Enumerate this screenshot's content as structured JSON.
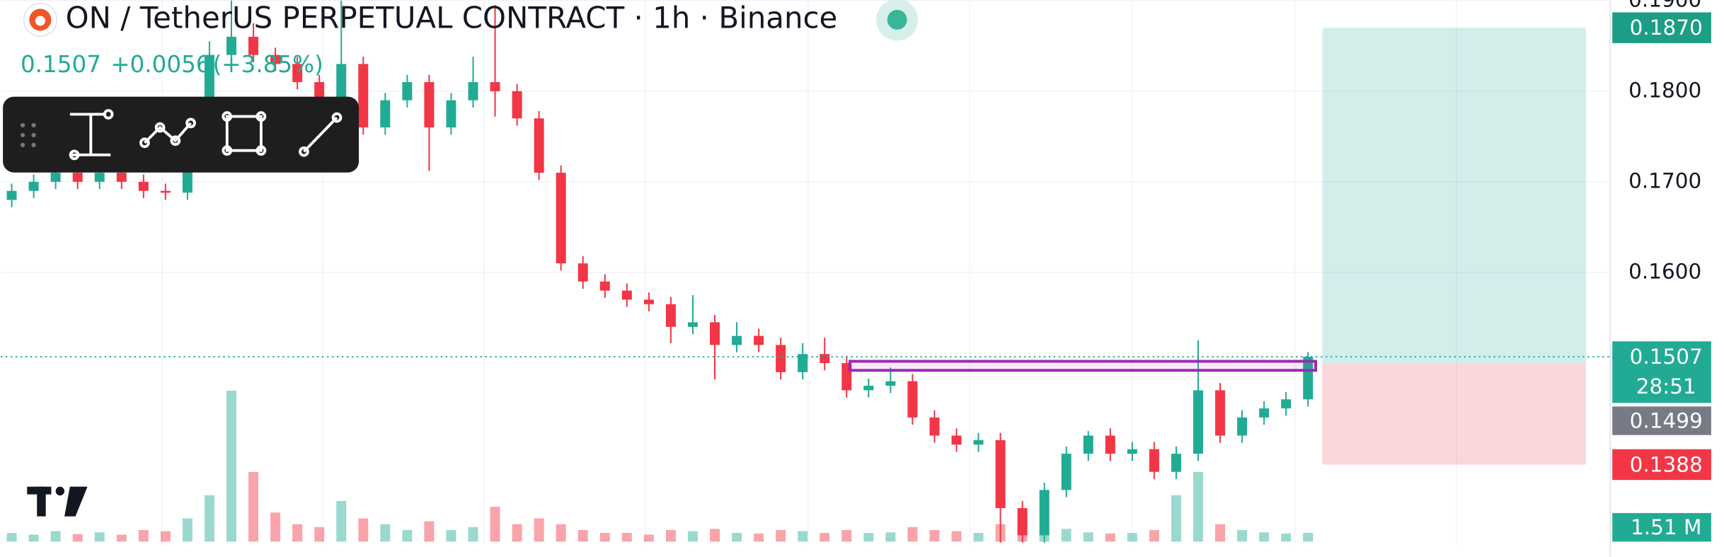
{
  "header": {
    "title": "ON / TetherUS PERPETUAL CONTRACT · 1h · Binance",
    "price": "0.1507",
    "change": "+0.0056",
    "change_pct": "(+3.85%)"
  },
  "chart_data": {
    "type": "candlestick",
    "candles": [
      [
        0.168,
        0.1698,
        0.1672,
        0.169
      ],
      [
        0.169,
        0.1708,
        0.1682,
        0.17
      ],
      [
        0.17,
        0.1718,
        0.1692,
        0.171
      ],
      [
        0.171,
        0.1718,
        0.1692,
        0.17
      ],
      [
        0.17,
        0.1718,
        0.1692,
        0.171
      ],
      [
        0.171,
        0.1718,
        0.1692,
        0.17
      ],
      [
        0.17,
        0.1708,
        0.1682,
        0.169
      ],
      [
        0.169,
        0.1698,
        0.168,
        0.1688
      ],
      [
        0.1688,
        0.1748,
        0.168,
        0.174
      ],
      [
        0.174,
        0.1855,
        0.1732,
        0.184
      ],
      [
        0.184,
        0.19,
        0.1832,
        0.186
      ],
      [
        0.186,
        0.1875,
        0.1832,
        0.184
      ],
      [
        0.184,
        0.1848,
        0.1822,
        0.183
      ],
      [
        0.183,
        0.1838,
        0.1802,
        0.181
      ],
      [
        0.181,
        0.1818,
        0.1782,
        0.179
      ],
      [
        0.179,
        0.19,
        0.1782,
        0.183
      ],
      [
        0.183,
        0.1838,
        0.1752,
        0.176
      ],
      [
        0.176,
        0.1798,
        0.1752,
        0.179
      ],
      [
        0.179,
        0.1818,
        0.1782,
        0.181
      ],
      [
        0.181,
        0.1818,
        0.1712,
        0.176
      ],
      [
        0.176,
        0.1798,
        0.1752,
        0.179
      ],
      [
        0.179,
        0.1838,
        0.1782,
        0.181
      ],
      [
        0.181,
        0.1895,
        0.1772,
        0.18
      ],
      [
        0.18,
        0.1808,
        0.1762,
        0.177
      ],
      [
        0.177,
        0.1778,
        0.1702,
        0.171
      ],
      [
        0.171,
        0.1718,
        0.1602,
        0.161
      ],
      [
        0.161,
        0.1618,
        0.1582,
        0.159
      ],
      [
        0.159,
        0.1598,
        0.1572,
        0.158
      ],
      [
        0.158,
        0.1588,
        0.1562,
        0.157
      ],
      [
        0.157,
        0.1578,
        0.1557,
        0.1565
      ],
      [
        0.1565,
        0.1573,
        0.1522,
        0.154
      ],
      [
        0.154,
        0.1575,
        0.1532,
        0.1545
      ],
      [
        0.1545,
        0.1553,
        0.1482,
        0.152
      ],
      [
        0.152,
        0.1545,
        0.1512,
        0.153
      ],
      [
        0.153,
        0.1538,
        0.1512,
        0.152
      ],
      [
        0.152,
        0.1528,
        0.1482,
        0.149
      ],
      [
        0.149,
        0.1522,
        0.1482,
        0.151
      ],
      [
        0.151,
        0.1528,
        0.1492,
        0.15
      ],
      [
        0.15,
        0.1508,
        0.1462,
        0.147
      ],
      [
        0.147,
        0.1483,
        0.1462,
        0.1475
      ],
      [
        0.1475,
        0.1495,
        0.1467,
        0.148
      ],
      [
        0.148,
        0.1488,
        0.1432,
        0.144
      ],
      [
        0.144,
        0.1448,
        0.1412,
        0.142
      ],
      [
        0.142,
        0.1428,
        0.1402,
        0.141
      ],
      [
        0.141,
        0.1423,
        0.1402,
        0.1415
      ],
      [
        0.1415,
        0.1423,
        0.1302,
        0.134
      ],
      [
        0.134,
        0.1348,
        0.1302,
        0.131
      ],
      [
        0.131,
        0.1368,
        0.1302,
        0.136
      ],
      [
        0.136,
        0.1408,
        0.1352,
        0.14
      ],
      [
        0.14,
        0.1425,
        0.1392,
        0.142
      ],
      [
        0.142,
        0.1428,
        0.1392,
        0.14
      ],
      [
        0.14,
        0.1413,
        0.1392,
        0.1405
      ],
      [
        0.1405,
        0.1413,
        0.1372,
        0.138
      ],
      [
        0.138,
        0.1408,
        0.1372,
        0.14
      ],
      [
        0.14,
        0.1525,
        0.1392,
        0.147
      ],
      [
        0.147,
        0.1478,
        0.1412,
        0.142
      ],
      [
        0.142,
        0.1448,
        0.1412,
        0.144
      ],
      [
        0.144,
        0.1458,
        0.1432,
        0.145
      ],
      [
        0.145,
        0.1468,
        0.1442,
        0.146
      ],
      [
        0.146,
        0.1512,
        0.1452,
        0.1507
      ]
    ],
    "volumes": [
      1.5,
      1.2,
      1.8,
      1.3,
      1.6,
      1.2,
      2,
      1.8,
      4,
      8,
      26,
      12,
      5,
      3,
      2.5,
      7,
      4,
      3,
      2,
      3.5,
      2,
      2.5,
      6,
      3,
      4,
      3,
      2,
      1.5,
      1.5,
      1.2,
      2,
      1.8,
      2.2,
      1.5,
      1.4,
      2,
      1.8,
      1.5,
      2,
      1.5,
      1.6,
      2.5,
      2,
      1.8,
      1.5,
      3,
      2.5,
      2,
      2.2,
      1.6,
      1.4,
      1.5,
      2,
      8,
      12,
      3,
      2,
      1.6,
      1.4,
      1.51
    ],
    "volume_ylim": [
      0,
      28
    ],
    "volume_label": "1.51 M",
    "up_color": "#22ab94",
    "down_color": "#f23645",
    "ylim": [
      0.13,
      0.19
    ],
    "yticks": [
      {
        "value": 0.16,
        "label": "0.1600"
      },
      {
        "value": 0.17,
        "label": "0.1700"
      },
      {
        "value": 0.18,
        "label": "0.1800"
      },
      {
        "value": 0.19,
        "label": "0.1900"
      }
    ],
    "last_price": {
      "value": 0.1507,
      "label": "0.1507"
    },
    "countdown": "28:51",
    "position": {
      "target": {
        "value": 0.187,
        "label": "0.1870"
      },
      "entry": {
        "value": 0.1499,
        "label": "0.1499"
      },
      "stop": {
        "value": 0.1388,
        "label": "0.1388"
      }
    },
    "zone": [
      0.1492,
      0.1502
    ]
  }
}
